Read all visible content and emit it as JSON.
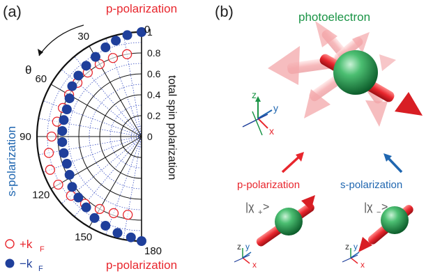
{
  "colors": {
    "red": "#e8262d",
    "blue": "#1f66b0",
    "navy": "#1f3f9b",
    "green": "#1a9446",
    "grid_dotted": "#3a4fc2",
    "dark_green": "#0f6b34",
    "light_green": "#7fd39a"
  },
  "panel_a": {
    "label": "(a)",
    "pol_top": "p-polarization",
    "pol_bottom": "p-polarization",
    "pol_left": "s-polarization",
    "theta_label": "θ",
    "radial_axis_label": "total spin polarization",
    "angle_ticks": [
      "0",
      "30",
      "60",
      "90",
      "120",
      "150",
      "180"
    ],
    "radial_ticks": [
      "1",
      "0.8",
      "0.6",
      "0.4",
      "0.2",
      "0"
    ],
    "legend": [
      {
        "marker": "open-circle",
        "text": "+k",
        "sub": "F"
      },
      {
        "marker": "filled-circle",
        "text": "−k",
        "sub": "F"
      }
    ]
  },
  "panel_b": {
    "label": "(b)",
    "photoelectron_label": "photoelectron",
    "p_pol_label": "p-polarization",
    "s_pol_label": "s-polarization",
    "state_plus": "|χ",
    "state_plus_sub": "+",
    "state_minus": "|χ",
    "state_minus_sub": "−",
    "state_close": ">",
    "axes": {
      "z": "z",
      "y": "y",
      "x": "x"
    }
  },
  "chart_data": {
    "type": "scatter",
    "coordinate_system": "polar",
    "angular_axis": {
      "unit": "degrees",
      "range": [
        0,
        180
      ],
      "ticks": [
        0,
        30,
        60,
        90,
        120,
        150,
        180
      ]
    },
    "radial_axis": {
      "label": "total spin polarization",
      "range": [
        0,
        1
      ],
      "ticks": [
        0,
        0.2,
        0.4,
        0.6,
        0.8,
        1
      ]
    },
    "series": [
      {
        "name": "+kF",
        "marker": "open-circle",
        "theta": [
          10,
          20,
          30,
          40,
          50,
          60,
          70,
          80,
          90,
          100,
          110,
          120,
          130,
          140,
          150,
          160,
          170
        ],
        "r": [
          0.8,
          0.8,
          0.8,
          0.8,
          0.8,
          0.8,
          0.8,
          0.82,
          0.86,
          0.9,
          0.93,
          0.92,
          0.88,
          0.84,
          0.8,
          0.78,
          0.76
        ]
      },
      {
        "name": "−kF",
        "marker": "filled-circle",
        "theta": [
          0,
          8,
          15,
          22,
          30,
          38,
          46,
          54,
          62,
          70,
          78,
          86,
          94,
          102,
          110,
          118,
          126,
          134,
          142,
          150,
          158,
          166,
          174,
          180
        ],
        "r": [
          1.0,
          0.98,
          0.95,
          0.92,
          0.88,
          0.86,
          0.84,
          0.82,
          0.78,
          0.76,
          0.76,
          0.76,
          0.76,
          0.76,
          0.76,
          0.78,
          0.82,
          0.84,
          0.86,
          0.9,
          0.92,
          0.95,
          0.97,
          1.0
        ]
      }
    ]
  }
}
